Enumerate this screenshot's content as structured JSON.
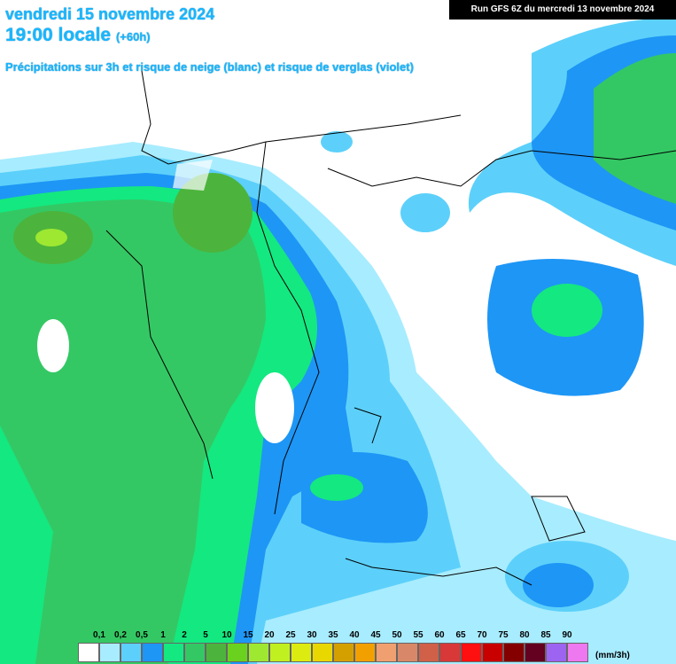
{
  "header": {
    "date": "vendredi 15 novembre 2024",
    "time": "19:00 locale",
    "offset": "(+60h)",
    "subtitle": "Précipitations sur 3h et risque de neige (blanc) et risque de verglas (violet)",
    "run": "Run GFS 6Z du mercredi 13 novembre 2024"
  },
  "legend": {
    "labels": [
      "0,1",
      "0,2",
      "0,5",
      "1",
      "2",
      "5",
      "10",
      "15",
      "20",
      "25",
      "30",
      "35",
      "40",
      "45",
      "50",
      "55",
      "60",
      "65",
      "70",
      "75",
      "80",
      "85",
      "90"
    ],
    "colors": [
      "#ffffff",
      "#a8ecff",
      "#5cd0fa",
      "#1e96f5",
      "#14e880",
      "#34c864",
      "#4cb43c",
      "#6ad21e",
      "#9ee832",
      "#c0f020",
      "#dcec10",
      "#e8d800",
      "#d4a000",
      "#f2a000",
      "#f0a070",
      "#d88868",
      "#d06048",
      "#d83838",
      "#ff1010",
      "#c80000",
      "#840000",
      "#640020",
      "#9c64f0",
      "#ee78f0"
    ],
    "unit": "(mm/3h)"
  }
}
